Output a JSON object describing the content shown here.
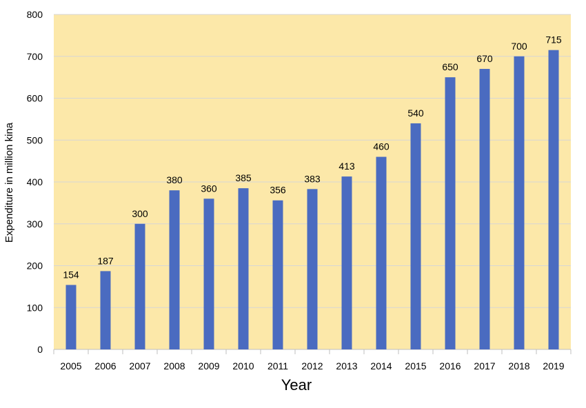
{
  "chart_data": {
    "type": "bar",
    "title": "",
    "xlabel": "Year",
    "ylabel": "Expenditure in million kina",
    "categories": [
      "2005",
      "2006",
      "2007",
      "2008",
      "2009",
      "2010",
      "2011",
      "2012",
      "2013",
      "2014",
      "2015",
      "2016",
      "2017",
      "2018",
      "2019"
    ],
    "values": [
      154,
      187,
      300,
      380,
      360,
      385,
      356,
      383,
      413,
      460,
      540,
      650,
      670,
      700,
      715
    ],
    "data_labels": [
      "154",
      "187",
      "300",
      "380",
      "360",
      "385",
      "356",
      "383",
      "413",
      "460",
      "540",
      "650",
      "670",
      "700",
      "715"
    ],
    "ylim": [
      0,
      800
    ],
    "yticks": [
      0,
      100,
      200,
      300,
      400,
      500,
      600,
      700,
      800
    ],
    "ytick_labels": [
      "0",
      "100",
      "200",
      "300",
      "400",
      "500",
      "600",
      "700",
      "800"
    ],
    "grid": true,
    "legend": "none",
    "colors": {
      "bar": "#4a6bc0",
      "plot_background": "#fce8a9",
      "gridline": "#d6d6d6"
    }
  }
}
